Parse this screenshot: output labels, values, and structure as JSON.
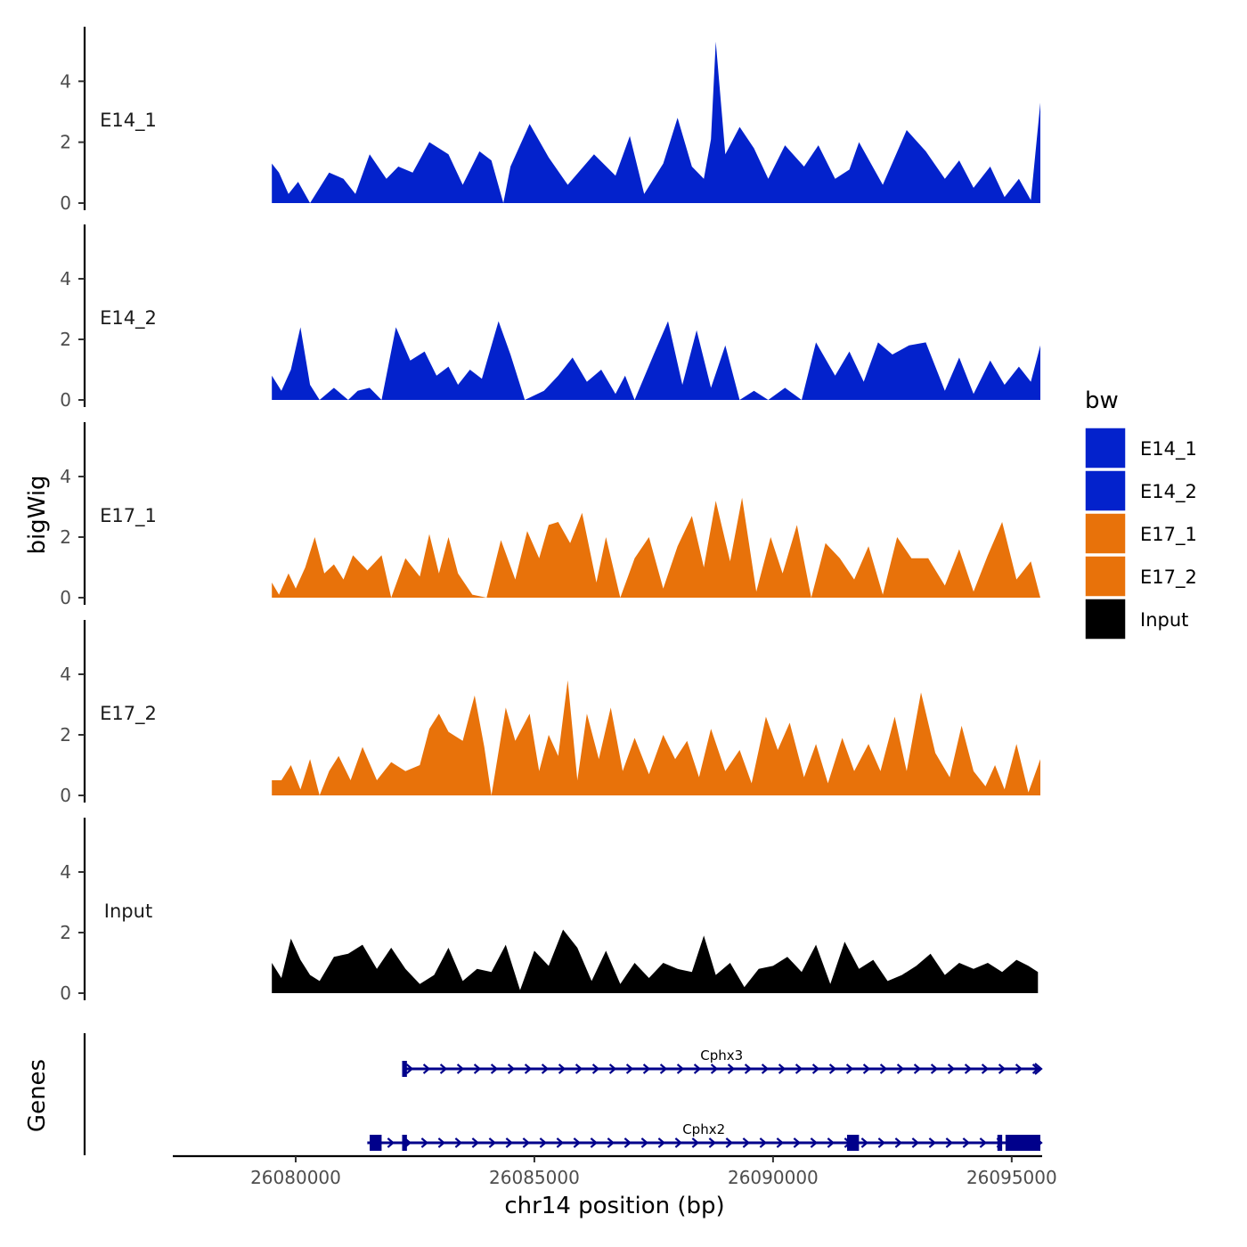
{
  "chart_data": {
    "type": "area",
    "y_title": "bigWig",
    "x_title": "chr14 position (bp)",
    "genes_title": "Genes",
    "xlim": [
      26077500,
      26095600
    ],
    "x_ticks": [
      26080000,
      26085000,
      26090000,
      26095000
    ],
    "x_tick_labels": [
      "26080000",
      "26085000",
      "26090000",
      "26095000"
    ],
    "ylim": [
      0,
      5.5
    ],
    "y_ticks": [
      0,
      2,
      4
    ],
    "y_tick_labels": [
      "0",
      "2",
      "4"
    ],
    "legend": {
      "title": "bw",
      "items": [
        {
          "label": "E14_1",
          "color": "#0322CC"
        },
        {
          "label": "E14_2",
          "color": "#0322CC"
        },
        {
          "label": "E17_1",
          "color": "#E8720A"
        },
        {
          "label": "E17_2",
          "color": "#E8720A"
        },
        {
          "label": "Input",
          "color": "#000000"
        }
      ]
    },
    "series": [
      {
        "name": "E14_1",
        "color": "#0322CC",
        "x": [
          26079500,
          26079650,
          26079850,
          26080050,
          26080300,
          26080700,
          26081000,
          26081250,
          26081550,
          26081900,
          26082150,
          26082450,
          26082800,
          26083200,
          26083500,
          26083850,
          26084100,
          26084350,
          26084500,
          26084900,
          26085300,
          26085700,
          26086250,
          26086700,
          26087000,
          26087300,
          26087700,
          26088000,
          26088300,
          26088550,
          26088700,
          26088800,
          26089000,
          26089300,
          26089600,
          26089900,
          26090250,
          26090650,
          26090950,
          26091300,
          26091600,
          26091800,
          26092300,
          26092800,
          26093200,
          26093600,
          26093900,
          26094200,
          26094550,
          26094850,
          26095150,
          26095400,
          26095600
        ],
        "values": [
          1.3,
          1.0,
          0.3,
          0.7,
          0.0,
          1.0,
          0.8,
          0.3,
          1.6,
          0.8,
          1.2,
          1.0,
          2.0,
          1.6,
          0.6,
          1.7,
          1.4,
          0.0,
          1.2,
          2.6,
          1.5,
          0.6,
          1.6,
          0.9,
          2.2,
          0.3,
          1.3,
          2.8,
          1.2,
          0.8,
          2.1,
          5.3,
          1.6,
          2.5,
          1.8,
          0.8,
          1.9,
          1.2,
          1.9,
          0.8,
          1.1,
          2.0,
          0.6,
          2.4,
          1.7,
          0.8,
          1.4,
          0.5,
          1.2,
          0.2,
          0.8,
          0.1,
          3.3
        ]
      },
      {
        "name": "E14_2",
        "color": "#0322CC",
        "x": [
          26079500,
          26079700,
          26079900,
          26080100,
          26080300,
          26080500,
          26080800,
          26081100,
          26081300,
          26081550,
          26081800,
          26082100,
          26082400,
          26082700,
          26082950,
          26083200,
          26083400,
          26083650,
          26083900,
          26084250,
          26084500,
          26084800,
          26085200,
          26085500,
          26085800,
          26086100,
          26086400,
          26086700,
          26086900,
          26087100,
          26087500,
          26087800,
          26088100,
          26088400,
          26088700,
          26089000,
          26089300,
          26089600,
          26089900,
          26090250,
          26090600,
          26090900,
          26091300,
          26091600,
          26091900,
          26092200,
          26092500,
          26092850,
          26093200,
          26093600,
          26093900,
          26094200,
          26094550,
          26094850,
          26095150,
          26095400,
          26095600
        ],
        "values": [
          0.8,
          0.3,
          1.0,
          2.4,
          0.5,
          0.0,
          0.4,
          0.0,
          0.3,
          0.4,
          0.0,
          2.4,
          1.3,
          1.6,
          0.8,
          1.1,
          0.5,
          1.0,
          0.7,
          2.6,
          1.5,
          0.0,
          0.3,
          0.8,
          1.4,
          0.6,
          1.0,
          0.2,
          0.8,
          0.0,
          1.5,
          2.6,
          0.5,
          2.3,
          0.4,
          1.8,
          0.0,
          0.3,
          0.0,
          0.4,
          0.0,
          1.9,
          0.8,
          1.6,
          0.6,
          1.9,
          1.5,
          1.8,
          1.9,
          0.3,
          1.4,
          0.2,
          1.3,
          0.5,
          1.1,
          0.6,
          1.8
        ]
      },
      {
        "name": "E17_1",
        "color": "#E8720A",
        "x": [
          26079500,
          26079650,
          26079850,
          26080000,
          26080200,
          26080400,
          26080600,
          26080800,
          26081000,
          26081200,
          26081500,
          26081800,
          26082000,
          26082300,
          26082600,
          26082800,
          26083000,
          26083200,
          26083400,
          26083700,
          26084000,
          26084300,
          26084600,
          26084850,
          26085100,
          26085300,
          26085500,
          26085750,
          26086000,
          26086300,
          26086500,
          26086800,
          26087100,
          26087400,
          26087700,
          26088000,
          26088300,
          26088550,
          26088800,
          26089100,
          26089350,
          26089650,
          26089950,
          26090200,
          26090500,
          26090800,
          26091100,
          26091400,
          26091700,
          26092000,
          26092300,
          26092600,
          26092900,
          26093250,
          26093600,
          26093900,
          26094200,
          26094500,
          26094800,
          26095100,
          26095400,
          26095600
        ],
        "values": [
          0.5,
          0.1,
          0.8,
          0.3,
          1.0,
          2.0,
          0.8,
          1.1,
          0.6,
          1.4,
          0.9,
          1.4,
          0.0,
          1.3,
          0.7,
          2.1,
          0.8,
          2.0,
          0.8,
          0.1,
          0.0,
          1.9,
          0.6,
          2.2,
          1.3,
          2.4,
          2.5,
          1.8,
          2.8,
          0.5,
          2.0,
          0.0,
          1.3,
          2.0,
          0.3,
          1.7,
          2.7,
          1.0,
          3.2,
          1.2,
          3.3,
          0.2,
          2.0,
          0.8,
          2.4,
          0.0,
          1.8,
          1.3,
          0.6,
          1.7,
          0.1,
          2.0,
          1.3,
          1.3,
          0.4,
          1.6,
          0.2,
          1.4,
          2.5,
          0.6,
          1.2,
          0.0
        ]
      },
      {
        "name": "E17_2",
        "color": "#E8720A",
        "x": [
          26079500,
          26079700,
          26079900,
          26080100,
          26080300,
          26080500,
          26080700,
          26080900,
          26081150,
          26081400,
          26081700,
          26082000,
          26082300,
          26082600,
          26082800,
          26083000,
          26083200,
          26083500,
          26083750,
          26083950,
          26084100,
          26084400,
          26084600,
          26084900,
          26085100,
          26085300,
          26085500,
          26085700,
          26085900,
          26086100,
          26086350,
          26086600,
          26086850,
          26087100,
          26087400,
          26087700,
          26087950,
          26088200,
          26088450,
          26088700,
          26089000,
          26089300,
          26089550,
          26089850,
          26090100,
          26090350,
          26090650,
          26090900,
          26091150,
          26091450,
          26091700,
          26092000,
          26092250,
          26092550,
          26092800,
          26093100,
          26093400,
          26093700,
          26093950,
          26094200,
          26094450,
          26094650,
          26094850,
          26095100,
          26095350,
          26095600
        ],
        "values": [
          0.5,
          0.5,
          1.0,
          0.2,
          1.2,
          0.0,
          0.8,
          1.3,
          0.5,
          1.6,
          0.5,
          1.1,
          0.8,
          1.0,
          2.2,
          2.7,
          2.1,
          1.8,
          3.3,
          1.6,
          0.0,
          2.9,
          1.8,
          2.7,
          0.8,
          2.0,
          1.3,
          3.8,
          0.5,
          2.7,
          1.2,
          2.9,
          0.8,
          1.9,
          0.7,
          2.0,
          1.2,
          1.8,
          0.6,
          2.2,
          0.8,
          1.5,
          0.4,
          2.6,
          1.5,
          2.4,
          0.6,
          1.7,
          0.4,
          1.9,
          0.8,
          1.7,
          0.8,
          2.6,
          0.8,
          3.4,
          1.4,
          0.6,
          2.3,
          0.8,
          0.3,
          1.0,
          0.2,
          1.7,
          0.1,
          1.2
        ]
      },
      {
        "name": "Input",
        "color": "#000000",
        "x": [
          26079500,
          26079700,
          26079900,
          26080100,
          26080300,
          26080500,
          26080800,
          26081100,
          26081400,
          26081700,
          26082000,
          26082300,
          26082600,
          26082900,
          26083200,
          26083500,
          26083800,
          26084100,
          26084400,
          26084700,
          26085000,
          26085300,
          26085600,
          26085900,
          26086200,
          26086500,
          26086800,
          26087100,
          26087400,
          26087700,
          26088000,
          26088300,
          26088550,
          26088800,
          26089100,
          26089400,
          26089700,
          26090000,
          26090300,
          26090600,
          26090900,
          26091200,
          26091500,
          26091800,
          26092100,
          26092400,
          26092700,
          26093000,
          26093300,
          26093600,
          26093900,
          26094200,
          26094500,
          26094800,
          26095100,
          26095350,
          26095550
        ],
        "values": [
          1.0,
          0.5,
          1.8,
          1.1,
          0.6,
          0.4,
          1.2,
          1.3,
          1.6,
          0.8,
          1.5,
          0.8,
          0.3,
          0.6,
          1.5,
          0.4,
          0.8,
          0.7,
          1.6,
          0.1,
          1.4,
          0.9,
          2.1,
          1.5,
          0.4,
          1.4,
          0.3,
          1.0,
          0.5,
          1.0,
          0.8,
          0.7,
          1.9,
          0.6,
          1.0,
          0.2,
          0.8,
          0.9,
          1.2,
          0.7,
          1.6,
          0.3,
          1.7,
          0.8,
          1.1,
          0.4,
          0.6,
          0.9,
          1.3,
          0.6,
          1.0,
          0.8,
          1.0,
          0.7,
          1.1,
          0.9,
          0.7
        ]
      }
    ],
    "genes": [
      {
        "name": "Cphx3",
        "start": 26082250,
        "end": 26095600,
        "strand": "+",
        "exons": [
          [
            26082230,
            26082330
          ]
        ]
      },
      {
        "name": "Cphx2",
        "start": 26081500,
        "end": 26095600,
        "strand": "+",
        "exons": [
          [
            26081550,
            26081800
          ],
          [
            26082230,
            26082330
          ],
          [
            26091550,
            26091800
          ],
          [
            26094700,
            26094800
          ],
          [
            26094870,
            26095600
          ]
        ]
      }
    ]
  }
}
